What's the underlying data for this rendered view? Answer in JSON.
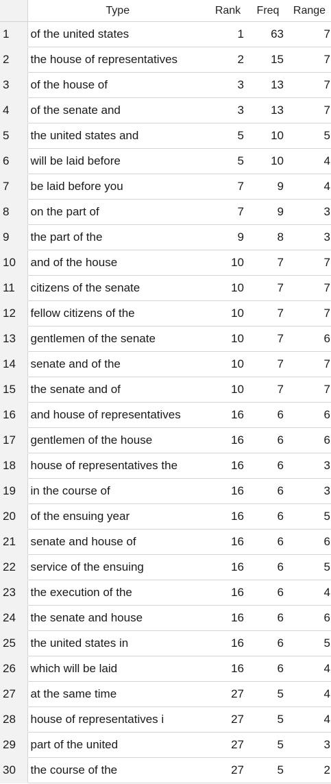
{
  "table": {
    "headers": {
      "index": "",
      "type": "Type",
      "rank": "Rank",
      "freq": "Freq",
      "range": "Range"
    },
    "rows": [
      {
        "index": "1",
        "type": "of the united states",
        "rank": "1",
        "freq": "63",
        "range": "7"
      },
      {
        "index": "2",
        "type": "the house of representatives",
        "rank": "2",
        "freq": "15",
        "range": "7"
      },
      {
        "index": "3",
        "type": "of the house of",
        "rank": "3",
        "freq": "13",
        "range": "7"
      },
      {
        "index": "4",
        "type": "of the senate and",
        "rank": "3",
        "freq": "13",
        "range": "7"
      },
      {
        "index": "5",
        "type": "the united states and",
        "rank": "5",
        "freq": "10",
        "range": "5"
      },
      {
        "index": "6",
        "type": "will be laid before",
        "rank": "5",
        "freq": "10",
        "range": "4"
      },
      {
        "index": "7",
        "type": "be laid before you",
        "rank": "7",
        "freq": "9",
        "range": "4"
      },
      {
        "index": "8",
        "type": "on the part of",
        "rank": "7",
        "freq": "9",
        "range": "3"
      },
      {
        "index": "9",
        "type": "the part of the",
        "rank": "9",
        "freq": "8",
        "range": "3"
      },
      {
        "index": "10",
        "type": "and of the house",
        "rank": "10",
        "freq": "7",
        "range": "7"
      },
      {
        "index": "11",
        "type": "citizens of the senate",
        "rank": "10",
        "freq": "7",
        "range": "7"
      },
      {
        "index": "12",
        "type": "fellow citizens of the",
        "rank": "10",
        "freq": "7",
        "range": "7"
      },
      {
        "index": "13",
        "type": "gentlemen of the senate",
        "rank": "10",
        "freq": "7",
        "range": "6"
      },
      {
        "index": "14",
        "type": "senate and of the",
        "rank": "10",
        "freq": "7",
        "range": "7"
      },
      {
        "index": "15",
        "type": "the senate and of",
        "rank": "10",
        "freq": "7",
        "range": "7"
      },
      {
        "index": "16",
        "type": "and house of representatives",
        "rank": "16",
        "freq": "6",
        "range": "6"
      },
      {
        "index": "17",
        "type": "gentlemen of the house",
        "rank": "16",
        "freq": "6",
        "range": "6"
      },
      {
        "index": "18",
        "type": "house of representatives the",
        "rank": "16",
        "freq": "6",
        "range": "3"
      },
      {
        "index": "19",
        "type": "in the course of",
        "rank": "16",
        "freq": "6",
        "range": "3"
      },
      {
        "index": "20",
        "type": "of the ensuing year",
        "rank": "16",
        "freq": "6",
        "range": "5"
      },
      {
        "index": "21",
        "type": "senate and house of",
        "rank": "16",
        "freq": "6",
        "range": "6"
      },
      {
        "index": "22",
        "type": "service of the ensuing",
        "rank": "16",
        "freq": "6",
        "range": "5"
      },
      {
        "index": "23",
        "type": "the execution of the",
        "rank": "16",
        "freq": "6",
        "range": "4"
      },
      {
        "index": "24",
        "type": "the senate and house",
        "rank": "16",
        "freq": "6",
        "range": "6"
      },
      {
        "index": "25",
        "type": "the united states in",
        "rank": "16",
        "freq": "6",
        "range": "5"
      },
      {
        "index": "26",
        "type": "which will be laid",
        "rank": "16",
        "freq": "6",
        "range": "4"
      },
      {
        "index": "27",
        "type": "at the same time",
        "rank": "27",
        "freq": "5",
        "range": "4"
      },
      {
        "index": "28",
        "type": "house of representatives i",
        "rank": "27",
        "freq": "5",
        "range": "4"
      },
      {
        "index": "29",
        "type": "part of the united",
        "rank": "27",
        "freq": "5",
        "range": "3"
      },
      {
        "index": "30",
        "type": "the course of the",
        "rank": "27",
        "freq": "5",
        "range": "2"
      }
    ]
  }
}
